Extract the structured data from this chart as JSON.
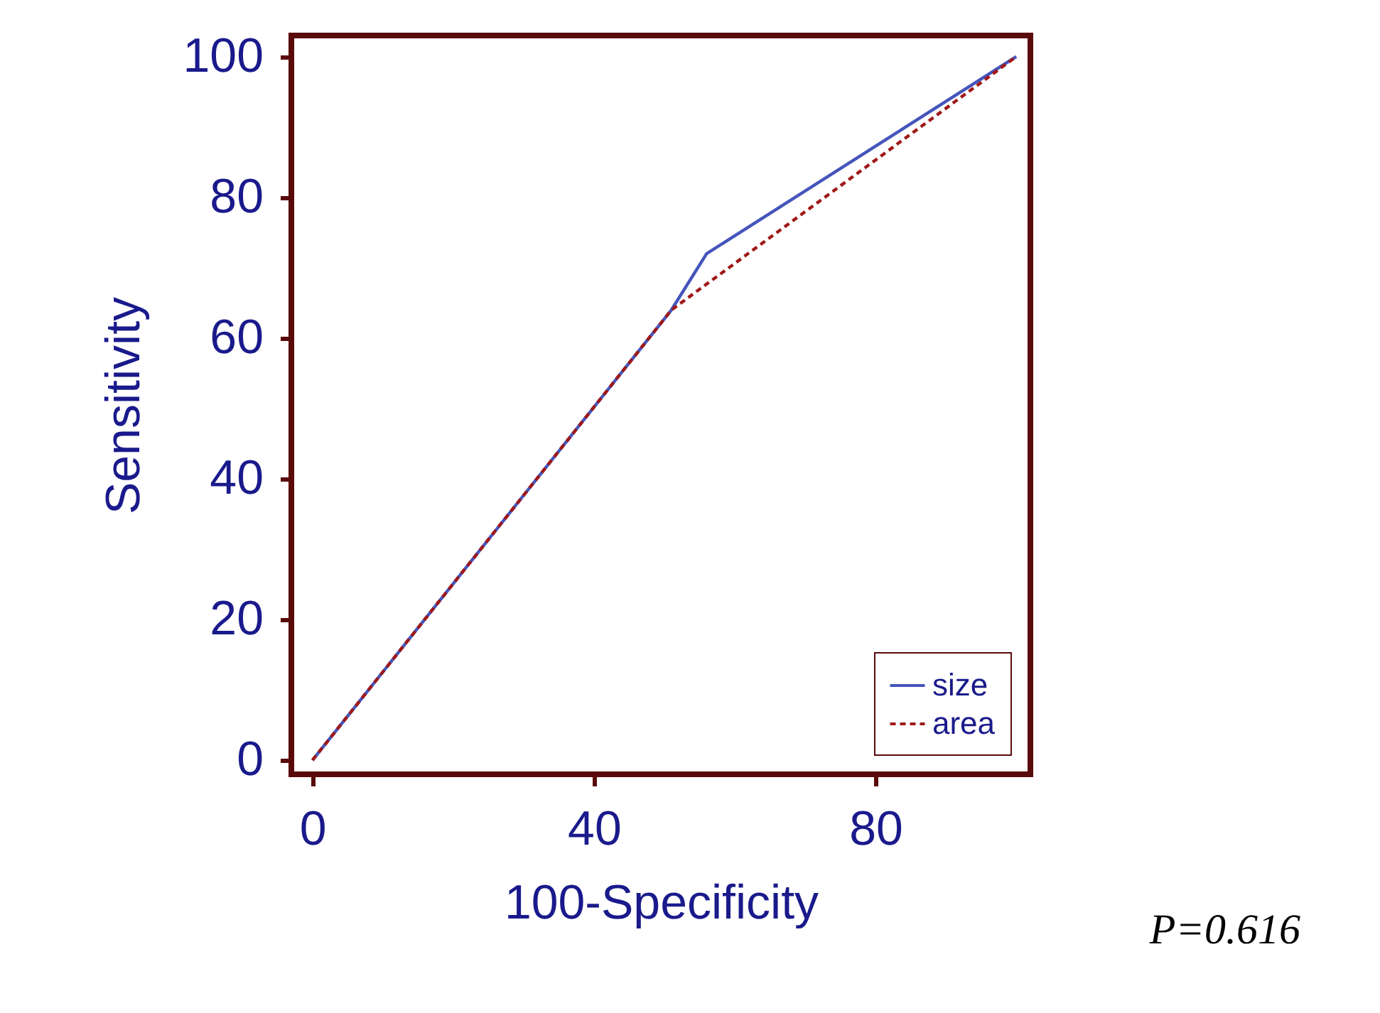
{
  "chart_data": {
    "type": "line",
    "xlabel": "100-Specificity",
    "ylabel": "Sensitivity",
    "xlim": [
      -3,
      102
    ],
    "ylim": [
      -2,
      103
    ],
    "xticks": [
      0,
      40,
      80
    ],
    "yticks": [
      0,
      20,
      40,
      60,
      80,
      100
    ],
    "series": [
      {
        "name": "size",
        "color": "#4455bb",
        "line_style": "solid",
        "x": [
          0,
          51,
          56,
          100
        ],
        "values": [
          0,
          64,
          72,
          100
        ]
      },
      {
        "name": "area",
        "color": "#a01818",
        "line_style": "dashed",
        "x": [
          0,
          51,
          100
        ],
        "values": [
          0,
          64,
          100
        ]
      }
    ],
    "legend": "bottom right",
    "grid": false,
    "marker": "none",
    "annotations": [
      "P=0.616"
    ]
  }
}
